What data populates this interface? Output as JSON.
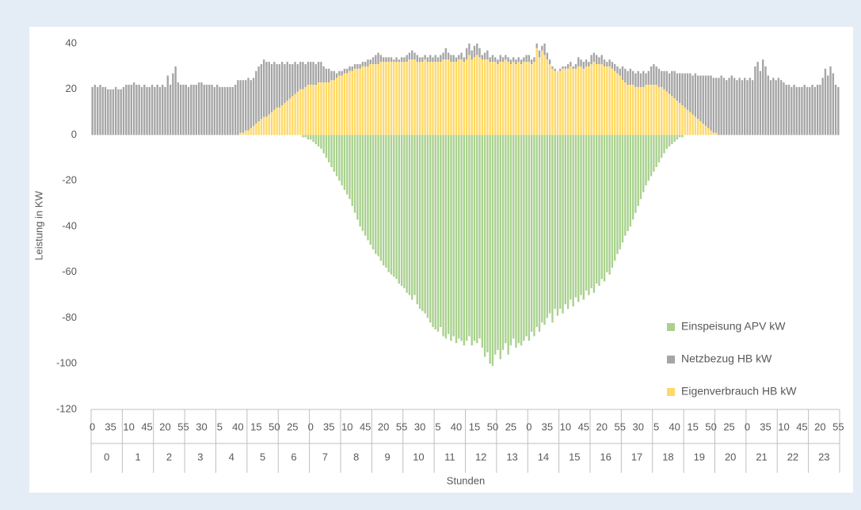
{
  "chart_data": {
    "type": "bar",
    "stacked": true,
    "y_label": "Leistung in KW",
    "x_label": "Stunden",
    "ylim": [
      -120,
      40
    ],
    "yticks": [
      40,
      20,
      0,
      -20,
      -40,
      -60,
      -80,
      -100,
      -120
    ],
    "grid": false,
    "legend": "lower right",
    "groups": [
      0,
      1,
      2,
      3,
      4,
      5,
      6,
      7,
      8,
      9,
      10,
      11,
      12,
      13,
      14,
      15,
      16,
      17,
      18,
      19,
      20,
      21,
      22,
      23
    ],
    "categories": [
      0,
      null,
      null,
      null,
      null,
      null,
      null,
      35,
      null,
      null,
      null,
      null,
      null,
      null,
      10,
      null,
      null,
      null,
      null,
      null,
      null,
      45,
      null,
      null,
      null,
      null,
      null,
      null,
      20,
      null,
      null,
      null,
      null,
      null,
      null,
      55,
      null,
      null,
      null,
      null,
      null,
      null,
      30,
      null,
      null,
      null,
      null,
      null,
      null,
      5,
      null,
      null,
      null,
      null,
      null,
      null,
      40,
      null,
      null,
      null,
      null,
      null,
      null,
      15,
      null,
      null,
      null,
      null,
      null,
      null,
      50,
      null,
      null,
      null,
      null,
      null,
      null,
      25,
      null,
      null,
      null,
      null,
      null,
      null,
      0,
      null,
      null,
      null,
      null,
      null,
      null,
      35,
      null,
      null,
      null,
      null,
      null,
      null,
      10,
      null,
      null,
      null,
      null,
      null,
      null,
      45,
      null,
      null,
      null,
      null,
      null,
      null,
      20,
      null,
      null,
      null,
      null,
      null,
      null,
      55,
      null,
      null,
      null,
      null,
      null,
      null,
      30,
      null,
      null,
      null,
      null,
      null,
      null,
      5,
      null,
      null,
      null,
      null,
      null,
      null,
      40,
      null,
      null,
      null,
      null,
      null,
      null,
      15,
      null,
      null,
      null,
      null,
      null,
      null,
      50,
      null,
      null,
      null,
      null,
      null,
      null,
      25,
      null,
      null,
      null,
      null,
      null,
      null,
      0,
      null,
      null,
      null,
      null,
      null,
      null,
      35,
      null,
      null,
      null,
      null,
      null,
      null,
      10,
      null,
      null,
      null,
      null,
      null,
      null,
      45,
      null,
      null,
      null,
      null,
      null,
      null,
      20,
      null,
      null,
      null,
      null,
      null,
      null,
      55,
      null,
      null,
      null,
      null,
      null,
      null,
      30,
      null,
      null,
      null,
      null,
      null,
      null,
      5,
      null,
      null,
      null,
      null,
      null,
      null,
      40,
      null,
      null,
      null,
      null,
      null,
      null,
      15,
      null,
      null,
      null,
      null,
      null,
      null,
      50,
      null,
      null,
      null,
      null,
      null,
      null,
      25,
      null,
      null,
      null,
      null,
      null,
      null,
      0,
      null,
      null,
      null,
      null,
      null,
      null,
      35,
      null,
      null,
      null,
      null,
      null,
      null,
      10,
      null,
      null,
      null,
      null,
      null,
      null,
      45,
      null,
      null,
      null,
      null,
      null,
      null,
      20,
      null,
      null,
      null,
      null,
      null,
      null,
      55
    ],
    "series": [
      {
        "name": "Einspeisung APV kW",
        "color": "#a9d18e",
        "values": [
          0,
          0,
          0,
          0,
          0,
          0,
          0,
          0,
          0,
          0,
          0,
          0,
          0,
          0,
          0,
          0,
          0,
          0,
          0,
          0,
          0,
          0,
          0,
          0,
          0,
          0,
          0,
          0,
          0,
          0,
          0,
          0,
          0,
          0,
          0,
          0,
          0,
          0,
          0,
          0,
          0,
          0,
          0,
          0,
          0,
          0,
          0,
          0,
          0,
          0,
          0,
          0,
          0,
          0,
          0,
          0,
          0,
          0,
          0,
          0,
          0,
          0,
          0,
          0,
          0,
          0,
          0,
          0,
          0,
          0,
          0,
          0,
          0,
          0,
          0,
          0,
          0,
          0,
          0,
          0,
          0,
          -1,
          -1,
          -2,
          -2,
          -3,
          -4,
          -5,
          -6,
          -8,
          -10,
          -12,
          -14,
          -16,
          -18,
          -20,
          -22,
          -24,
          -26,
          -28,
          -31,
          -34,
          -37,
          -40,
          -42,
          -44,
          -46,
          -48,
          -50,
          -52,
          -53,
          -55,
          -57,
          -58,
          -60,
          -61,
          -62,
          -63,
          -65,
          -66,
          -67,
          -69,
          -70,
          -72,
          -70,
          -74,
          -76,
          -77,
          -78,
          -80,
          -82,
          -84,
          -85,
          -86,
          -84,
          -88,
          -89,
          -87,
          -90,
          -88,
          -91,
          -89,
          -90,
          -92,
          -90,
          -88,
          -92,
          -90,
          -91,
          -89,
          -93,
          -97,
          -95,
          -100,
          -101,
          -96,
          -94,
          -98,
          -94,
          -91,
          -96,
          -92,
          -89,
          -93,
          -91,
          -92,
          -90,
          -88,
          -90,
          -86,
          -88,
          -84,
          -86,
          -82,
          -83,
          -80,
          -78,
          -82,
          -76,
          -79,
          -76,
          -78,
          -74,
          -76,
          -72,
          -75,
          -71,
          -73,
          -70,
          -72,
          -68,
          -70,
          -67,
          -69,
          -65,
          -66,
          -63,
          -64,
          -60,
          -61,
          -58,
          -55,
          -52,
          -50,
          -47,
          -44,
          -42,
          -40,
          -37,
          -34,
          -31,
          -28,
          -25,
          -22,
          -20,
          -18,
          -16,
          -14,
          -12,
          -10,
          -8,
          -6,
          -5,
          -4,
          -3,
          -2,
          -1,
          -1,
          0,
          0,
          0,
          0,
          0,
          0,
          0,
          0,
          0,
          0,
          0,
          0,
          0,
          0,
          0,
          0,
          0,
          0,
          0,
          0,
          0,
          0,
          0,
          0,
          0,
          0,
          0,
          0,
          0,
          0,
          0,
          0,
          0,
          0,
          0,
          0,
          0,
          0,
          0,
          0,
          0,
          0,
          0,
          0,
          0,
          0,
          0,
          0,
          0,
          0,
          0,
          0,
          0,
          0,
          0,
          0,
          0,
          0,
          0,
          0
        ]
      },
      {
        "name": "Netzbezug HB kW",
        "color": "#a5a5a5",
        "values": [
          21,
          22,
          21,
          22,
          21,
          21,
          20,
          20,
          20,
          21,
          20,
          20,
          21,
          22,
          22,
          22,
          23,
          22,
          22,
          21,
          22,
          21,
          21,
          22,
          21,
          22,
          21,
          22,
          21,
          26,
          22,
          27,
          30,
          23,
          22,
          22,
          22,
          21,
          22,
          22,
          22,
          23,
          23,
          22,
          22,
          22,
          22,
          21,
          22,
          21,
          21,
          21,
          21,
          21,
          21,
          22,
          24,
          23,
          23,
          22,
          23,
          21,
          21,
          23,
          24,
          24,
          25,
          24,
          23,
          21,
          21,
          19,
          19,
          19,
          17,
          17,
          15,
          14,
          14,
          12,
          12,
          12,
          10,
          10,
          10,
          10,
          9,
          9,
          9,
          7,
          6,
          6,
          4,
          4,
          2,
          2,
          2,
          2,
          2,
          2,
          2,
          2,
          2,
          2,
          2,
          2,
          3,
          2,
          3,
          4,
          5,
          3,
          2,
          2,
          2,
          2,
          1,
          2,
          1,
          2,
          2,
          3,
          3,
          4,
          3,
          3,
          2,
          2,
          2,
          2,
          3,
          2,
          3,
          2,
          3,
          3,
          5,
          3,
          3,
          3,
          2,
          2,
          3,
          2,
          5,
          5,
          4,
          5,
          5,
          4,
          2,
          3,
          4,
          2,
          3,
          2,
          2,
          3,
          2,
          2,
          2,
          2,
          2,
          2,
          2,
          2,
          2,
          3,
          3,
          2,
          2,
          2,
          3,
          2,
          5,
          3,
          2,
          1,
          1,
          0,
          1,
          1,
          1,
          2,
          2,
          1,
          2,
          4,
          3,
          3,
          3,
          2,
          4,
          4,
          4,
          3,
          4,
          3,
          2,
          3,
          3,
          3,
          3,
          3,
          6,
          6,
          6,
          7,
          6,
          6,
          7,
          6,
          7,
          5,
          6,
          8,
          9,
          8,
          8,
          7,
          8,
          9,
          9,
          11,
          12,
          12,
          13,
          14,
          15,
          16,
          17,
          17,
          19,
          19,
          20,
          21,
          22,
          23,
          24,
          24,
          24,
          25,
          26,
          25,
          24,
          25,
          26,
          25,
          24,
          25,
          24,
          25,
          24,
          25,
          24,
          30,
          32,
          28,
          33,
          30,
          26,
          24,
          25,
          24,
          25,
          24,
          23,
          22,
          22,
          21,
          22,
          21,
          21,
          21,
          22,
          21,
          21,
          22,
          21,
          22,
          22,
          25,
          29,
          26,
          30,
          27,
          22,
          21
        ]
      },
      {
        "name": "Eigenverbrauch HB kW",
        "color": "#ffd966",
        "values": [
          0,
          0,
          0,
          0,
          0,
          0,
          0,
          0,
          0,
          0,
          0,
          0,
          0,
          0,
          0,
          0,
          0,
          0,
          0,
          0,
          0,
          0,
          0,
          0,
          0,
          0,
          0,
          0,
          0,
          0,
          0,
          0,
          0,
          0,
          0,
          0,
          0,
          0,
          0,
          0,
          0,
          0,
          0,
          0,
          0,
          0,
          0,
          0,
          0,
          0,
          0,
          0,
          0,
          0,
          0,
          0,
          0,
          1,
          1,
          2,
          2,
          3,
          4,
          5,
          6,
          7,
          8,
          8,
          9,
          10,
          11,
          12,
          12,
          13,
          14,
          15,
          16,
          17,
          18,
          19,
          20,
          20,
          21,
          22,
          22,
          22,
          22,
          23,
          23,
          23,
          23,
          23,
          24,
          24,
          25,
          26,
          26,
          27,
          27,
          28,
          28,
          29,
          29,
          29,
          30,
          30,
          30,
          31,
          31,
          31,
          31,
          32,
          32,
          32,
          32,
          32,
          32,
          32,
          32,
          32,
          32,
          32,
          33,
          33,
          33,
          32,
          32,
          32,
          33,
          32,
          32,
          32,
          32,
          32,
          32,
          33,
          33,
          33,
          32,
          32,
          32,
          33,
          33,
          32,
          33,
          35,
          33,
          34,
          35,
          34,
          33,
          33,
          33,
          32,
          32,
          32,
          31,
          32,
          32,
          33,
          32,
          31,
          32,
          31,
          32,
          31,
          32,
          32,
          32,
          31,
          32,
          38,
          34,
          37,
          35,
          33,
          31,
          29,
          28,
          28,
          28,
          29,
          29,
          29,
          30,
          29,
          29,
          30,
          30,
          29,
          30,
          30,
          31,
          32,
          31,
          31,
          31,
          30,
          30,
          30,
          29,
          28,
          27,
          26,
          24,
          23,
          22,
          22,
          22,
          21,
          21,
          21,
          21,
          22,
          22,
          22,
          22,
          22,
          21,
          21,
          20,
          19,
          18,
          17,
          16,
          15,
          14,
          13,
          12,
          11,
          10,
          9,
          8,
          7,
          6,
          5,
          4,
          3,
          2,
          1,
          1,
          0,
          0,
          0,
          0,
          0,
          0,
          0,
          0,
          0,
          0,
          0,
          0,
          0,
          0,
          0,
          0,
          0,
          0,
          0,
          0,
          0,
          0,
          0,
          0,
          0,
          0,
          0,
          0,
          0,
          0,
          0,
          0,
          0,
          0,
          0,
          0,
          0,
          0,
          0,
          0,
          0,
          0,
          0,
          0,
          0,
          0,
          0
        ]
      }
    ]
  }
}
